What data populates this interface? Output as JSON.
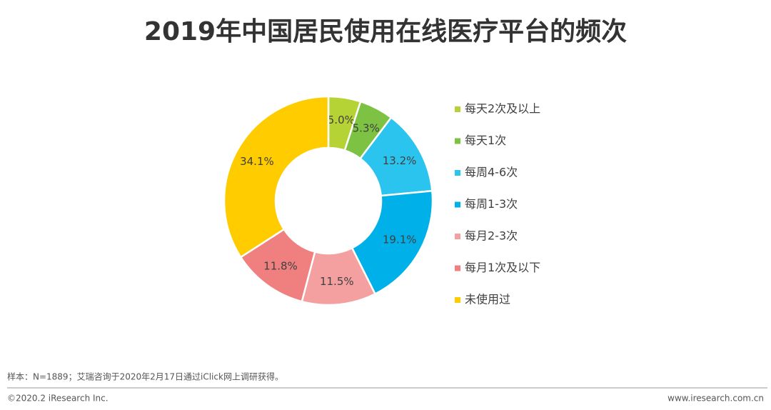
{
  "chart_data": {
    "type": "donut",
    "title": "2019年中国居民使用在线医疗平台的频次",
    "categories": [
      "每天2次及以上",
      "每天1次",
      "每周4-6次",
      "每周1-3次",
      "每月2-3次",
      "每月1次及以下",
      "未使用过"
    ],
    "values": [
      5.0,
      5.3,
      13.2,
      19.1,
      11.5,
      11.8,
      34.1
    ],
    "value_labels": [
      "5.0%",
      "5.3%",
      "13.2%",
      "19.1%",
      "11.5%",
      "11.8%",
      "34.1%"
    ],
    "colors": [
      "#b5d334",
      "#7dc242",
      "#2bc4ee",
      "#00b0e8",
      "#f4a0a0",
      "#f08080",
      "#ffcc00"
    ],
    "legend": "right"
  },
  "footer": {
    "note": "样本：N=1889；艾瑞咨询于2020年2月17日通过iClick网上调研获得。",
    "copyright": "©2020.2 iResearch Inc.",
    "website": "www.iresearch.com.cn"
  }
}
